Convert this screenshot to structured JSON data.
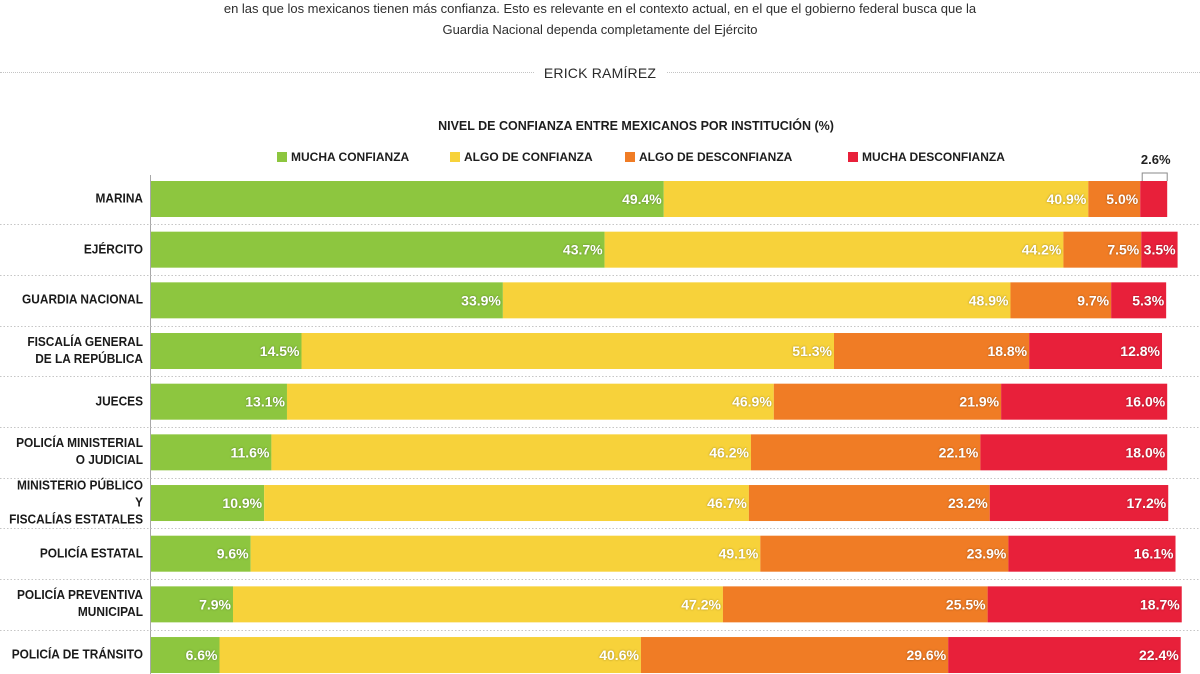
{
  "intro": {
    "line1": "en las que los mexicanos tienen más confianza. Esto es relevante en el contexto actual, en el que el gobierno federal busca que la",
    "line2": "Guardia Nacional dependa completamente del Ejército"
  },
  "byline": "ERICK RAMÍREZ",
  "chart_data": {
    "type": "bar",
    "stacked": true,
    "title": "NIVEL DE CONFIANZA ENTRE MEXICANOS POR INSTITUCIÓN (%)",
    "legend_position": "top",
    "xlim": [
      0,
      100
    ],
    "categories": [
      "MARINA",
      "EJÉRCITO",
      "GUARDIA NACIONAL",
      "FISCALÍA GENERAL\nDE LA REPÚBLICA",
      "JUECES",
      "POLICÍA MINISTERIAL\nO JUDICIAL",
      "MINISTERIO PÚBLICO Y\nFISCALÍAS ESTATALES",
      "POLICÍA ESTATAL",
      "POLICÍA PREVENTIVA\nMUNICIPAL",
      "POLICÍA DE TRÁNSITO"
    ],
    "series": [
      {
        "name": "MUCHA CONFIANZA",
        "color": "#8DC63F",
        "values": [
          49.4,
          43.7,
          33.9,
          14.5,
          13.1,
          11.6,
          10.9,
          9.6,
          7.9,
          6.6
        ],
        "labels": [
          "49.4%",
          "43.7%",
          "33.9%",
          "14.5%",
          "13.1%",
          "11.6%",
          "10.9%",
          "9.6%",
          "7.9%",
          "6.6%"
        ]
      },
      {
        "name": "ALGO DE CONFIANZA",
        "color": "#F7D23A",
        "values": [
          40.9,
          44.2,
          48.9,
          51.3,
          46.9,
          46.2,
          46.7,
          49.1,
          47.2,
          40.6
        ],
        "labels": [
          "40.9%",
          "44.2%",
          "48.9%",
          "51.3%",
          "46.9%",
          "46.2%",
          "46.7%",
          "49.1%",
          "47.2%",
          "40.6%"
        ]
      },
      {
        "name": "ALGO DE DESCONFIANZA",
        "color": "#F07C25",
        "values": [
          5.0,
          7.5,
          9.7,
          18.8,
          21.9,
          22.1,
          23.2,
          23.9,
          25.5,
          29.6
        ],
        "labels": [
          "5.0%",
          "7.5%",
          "9.7%",
          "18.8%",
          "21.9%",
          "22.1%",
          "23.2%",
          "23.9%",
          "25.5%",
          "29.6%"
        ]
      },
      {
        "name": "MUCHA DESCONFIANZA",
        "color": "#E8203A",
        "values": [
          2.6,
          3.5,
          5.3,
          12.8,
          16.0,
          18.0,
          17.2,
          16.1,
          18.7,
          22.4
        ],
        "labels": [
          "2.6%",
          "3.5%",
          "5.3%",
          "12.8%",
          "16.0%",
          "18.0%",
          "17.2%",
          "16.1%",
          "18.7%",
          "22.4%"
        ]
      }
    ]
  }
}
